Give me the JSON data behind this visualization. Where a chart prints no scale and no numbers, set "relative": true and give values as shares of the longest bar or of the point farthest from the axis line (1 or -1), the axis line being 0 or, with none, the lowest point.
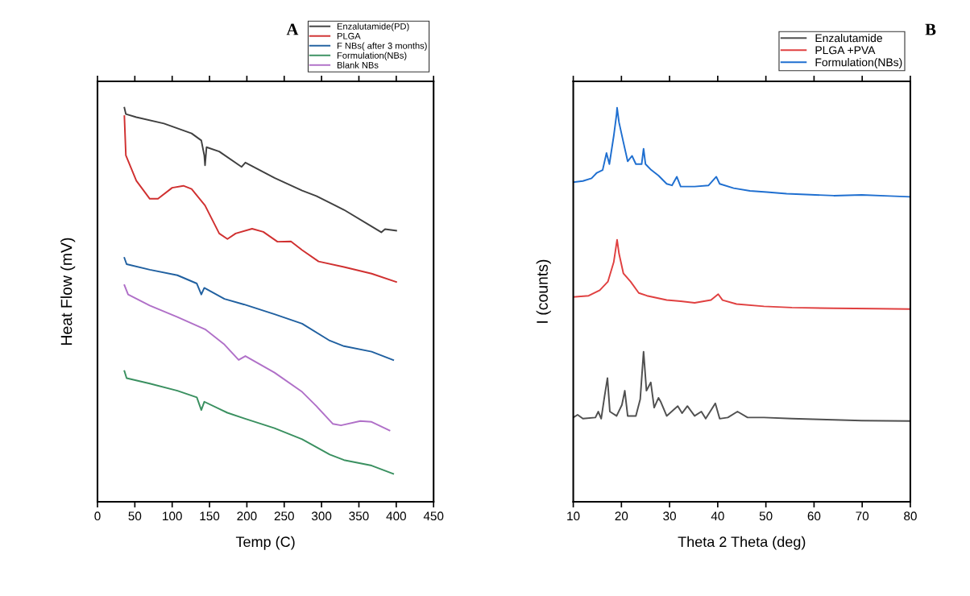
{
  "chart_data": [
    {
      "type": "line",
      "relative": true,
      "xlabel": "Temp (C)",
      "ylabel": "Heat Flow (mV)",
      "annotations": [
        "A"
      ],
      "legend": "top right",
      "xlim": [
        0,
        450
      ],
      "xticks": [
        0,
        50,
        100,
        150,
        200,
        250,
        300,
        350,
        400,
        450
      ],
      "tick_labels": "x",
      "series": [
        {
          "name": "Enzalutamide(PD)",
          "color": "#404040",
          "x": [
            36,
            38,
            52,
            89,
            126,
            139,
            143,
            144,
            146,
            163,
            193,
            198,
            237,
            274,
            293,
            330,
            367,
            380,
            385,
            400
          ],
          "values": [
            1.0,
            0.984,
            0.976,
            0.96,
            0.935,
            0.917,
            0.879,
            0.854,
            0.9,
            0.889,
            0.85,
            0.861,
            0.822,
            0.79,
            0.776,
            0.741,
            0.699,
            0.684,
            0.692,
            0.688
          ]
        },
        {
          "name": "PLGA",
          "color": "#d03030",
          "x": [
            36,
            38,
            52,
            70,
            81,
            100,
            115,
            126,
            144,
            163,
            174,
            185,
            207,
            222,
            241,
            259,
            274,
            296,
            330,
            367,
            400
          ],
          "values": [
            0.979,
            0.879,
            0.815,
            0.769,
            0.769,
            0.797,
            0.802,
            0.794,
            0.752,
            0.681,
            0.667,
            0.681,
            0.693,
            0.685,
            0.66,
            0.661,
            0.639,
            0.61,
            0.596,
            0.579,
            0.558
          ]
        },
        {
          "name": "F NBs( after 3 months)",
          "color": "#2060a0",
          "x": [
            36,
            39,
            70,
            107,
            133,
            139,
            143,
            170,
            196,
            237,
            274,
            311,
            330,
            367,
            396
          ],
          "values": [
            0.619,
            0.603,
            0.589,
            0.575,
            0.554,
            0.526,
            0.543,
            0.515,
            0.501,
            0.476,
            0.452,
            0.409,
            0.395,
            0.381,
            0.36
          ]
        },
        {
          "name": "Formulation(NBs)",
          "color": "#3a9060",
          "x": [
            36,
            39,
            70,
            107,
            133,
            139,
            143,
            174,
            196,
            237,
            274,
            311,
            330,
            367,
            396
          ],
          "values": [
            0.332,
            0.314,
            0.3,
            0.282,
            0.265,
            0.233,
            0.254,
            0.226,
            0.212,
            0.187,
            0.159,
            0.12,
            0.106,
            0.092,
            0.071
          ]
        },
        {
          "name": "Blank NBs",
          "color": "#b070c8",
          "x": [
            36,
            41,
            70,
            107,
            144,
            170,
            189,
            198,
            237,
            274,
            293,
            315,
            326,
            352,
            367,
            391
          ],
          "values": [
            0.55,
            0.526,
            0.498,
            0.469,
            0.438,
            0.399,
            0.36,
            0.37,
            0.328,
            0.279,
            0.243,
            0.198,
            0.194,
            0.205,
            0.203,
            0.181
          ]
        }
      ]
    },
    {
      "type": "line",
      "relative": true,
      "xlabel": "Theta 2 Theta (deg)",
      "ylabel": "I (counts)",
      "annotations": [
        "B"
      ],
      "legend": "top right",
      "xlim": [
        10,
        80
      ],
      "xticks": [
        10,
        20,
        30,
        40,
        50,
        60,
        70,
        80
      ],
      "tick_labels": "x",
      "series": [
        {
          "name": "Enzalutamide",
          "color": "#505050",
          "x": [
            10.0,
            10.9,
            12.0,
            14.6,
            15.2,
            15.8,
            16.5,
            17.1,
            17.6,
            19.0,
            20.1,
            20.7,
            21.3,
            23.0,
            23.9,
            24.6,
            25.2,
            26.1,
            26.8,
            27.7,
            28.2,
            29.4,
            31.7,
            32.6,
            33.7,
            35.2,
            36.6,
            37.5,
            39.5,
            40.4,
            42.1,
            44.1,
            46.2,
            49.6,
            55.4,
            61.2,
            69.9,
            80.0
          ],
          "values": [
            0.214,
            0.221,
            0.211,
            0.214,
            0.229,
            0.211,
            0.268,
            0.314,
            0.229,
            0.218,
            0.246,
            0.282,
            0.218,
            0.218,
            0.26,
            0.381,
            0.282,
            0.303,
            0.239,
            0.264,
            0.253,
            0.218,
            0.243,
            0.225,
            0.243,
            0.218,
            0.229,
            0.211,
            0.25,
            0.211,
            0.214,
            0.229,
            0.214,
            0.214,
            0.211,
            0.209,
            0.206,
            0.205
          ]
        },
        {
          "name": "PLGA +PVA",
          "color": "#e04040",
          "x": [
            10.0,
            13.2,
            15.5,
            17.2,
            18.4,
            19.1,
            19.5,
            20.4,
            21.9,
            23.6,
            25.3,
            29.4,
            32.3,
            35.2,
            38.6,
            40.1,
            41.0,
            43.9,
            49.6,
            55.4,
            64.1,
            72.8,
            80.0
          ],
          "values": [
            0.52,
            0.523,
            0.537,
            0.559,
            0.608,
            0.665,
            0.63,
            0.58,
            0.559,
            0.53,
            0.523,
            0.512,
            0.509,
            0.505,
            0.512,
            0.527,
            0.512,
            0.502,
            0.496,
            0.493,
            0.491,
            0.49,
            0.489
          ]
        },
        {
          "name": "Formulation(NBs)",
          "color": "#1f6fd0",
          "x": [
            10.0,
            12.0,
            13.8,
            14.9,
            16.1,
            16.9,
            17.5,
            18.4,
            19.0,
            19.1,
            19.5,
            20.4,
            21.3,
            22.2,
            23.0,
            24.2,
            24.6,
            25.0,
            26.2,
            27.7,
            29.4,
            30.5,
            31.5,
            32.3,
            35.2,
            38.1,
            39.7,
            40.4,
            43.3,
            46.7,
            50.2,
            54.3,
            58.3,
            64.1,
            69.9,
            75.7,
            80.0
          ],
          "values": [
            0.811,
            0.814,
            0.821,
            0.835,
            0.842,
            0.885,
            0.857,
            0.928,
            0.984,
            1.0,
            0.963,
            0.913,
            0.864,
            0.878,
            0.857,
            0.857,
            0.896,
            0.857,
            0.842,
            0.828,
            0.807,
            0.803,
            0.825,
            0.8,
            0.8,
            0.803,
            0.825,
            0.807,
            0.796,
            0.789,
            0.786,
            0.782,
            0.78,
            0.777,
            0.779,
            0.776,
            0.774
          ]
        }
      ]
    }
  ]
}
